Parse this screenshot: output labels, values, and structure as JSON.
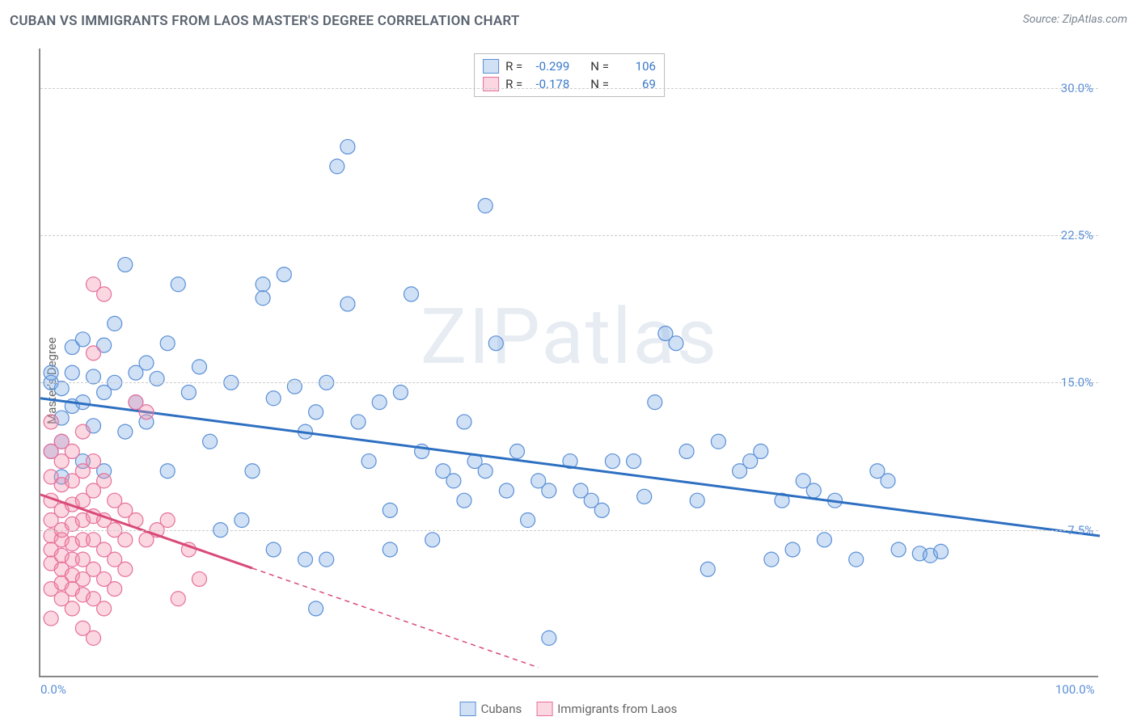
{
  "header": {
    "title": "CUBAN VS IMMIGRANTS FROM LAOS MASTER'S DEGREE CORRELATION CHART",
    "source_prefix": "Source: ",
    "source_name": "ZipAtlas.com"
  },
  "chart": {
    "type": "scatter",
    "y_axis_label": "Master's Degree",
    "watermark": "ZIPatlas",
    "background_color": "#ffffff",
    "grid_color": "#cccccc",
    "axis_color": "#888888",
    "tick_color": "#5a8fd6",
    "x_range": [
      0,
      100
    ],
    "y_range": [
      0,
      32
    ],
    "x_ticks": [
      {
        "value": 0,
        "label": "0.0%"
      },
      {
        "value": 100,
        "label": "100.0%"
      }
    ],
    "y_ticks": [
      {
        "value": 7.5,
        "label": "7.5%"
      },
      {
        "value": 15.0,
        "label": "15.0%"
      },
      {
        "value": 22.5,
        "label": "22.5%"
      },
      {
        "value": 30.0,
        "label": "30.0%"
      }
    ],
    "marker_radius": 9,
    "marker_stroke_width": 1.2,
    "trend_line_width": 3,
    "series": [
      {
        "name": "Cubans",
        "fill_color": "rgba(120,170,230,0.35)",
        "stroke_color": "#5a8fd6",
        "trend_color": "#2d6fc1",
        "R": "-0.299",
        "N": "106",
        "trend": {
          "x1": 0,
          "y1": 14.2,
          "x2": 100,
          "y2": 7.2,
          "solid_until_x": 100
        },
        "points": [
          [
            1,
            15.5
          ],
          [
            1,
            15.0
          ],
          [
            1,
            11.5
          ],
          [
            2,
            14.7
          ],
          [
            2,
            13.2
          ],
          [
            2,
            12.0
          ],
          [
            2,
            10.2
          ],
          [
            3,
            16.8
          ],
          [
            3,
            15.5
          ],
          [
            3,
            13.8
          ],
          [
            4,
            17.2
          ],
          [
            4,
            14.0
          ],
          [
            4,
            11.0
          ],
          [
            5,
            15.3
          ],
          [
            5,
            12.8
          ],
          [
            6,
            16.9
          ],
          [
            6,
            14.5
          ],
          [
            6,
            10.5
          ],
          [
            7,
            18.0
          ],
          [
            7,
            15.0
          ],
          [
            8,
            21.0
          ],
          [
            8,
            12.5
          ],
          [
            9,
            15.5
          ],
          [
            9,
            14.0
          ],
          [
            10,
            16.0
          ],
          [
            10,
            13.0
          ],
          [
            11,
            15.2
          ],
          [
            12,
            17.0
          ],
          [
            12,
            10.5
          ],
          [
            13,
            20.0
          ],
          [
            14,
            14.5
          ],
          [
            15,
            15.8
          ],
          [
            16,
            12.0
          ],
          [
            17,
            7.5
          ],
          [
            18,
            15.0
          ],
          [
            19,
            8.0
          ],
          [
            20,
            10.5
          ],
          [
            21,
            20.0
          ],
          [
            21,
            19.3
          ],
          [
            22,
            14.2
          ],
          [
            22,
            6.5
          ],
          [
            23,
            20.5
          ],
          [
            24,
            14.8
          ],
          [
            25,
            12.5
          ],
          [
            25,
            6.0
          ],
          [
            26,
            13.5
          ],
          [
            26,
            3.5
          ],
          [
            27,
            15.0
          ],
          [
            28,
            26.0
          ],
          [
            29,
            27.0
          ],
          [
            29,
            19.0
          ],
          [
            30,
            13.0
          ],
          [
            31,
            11.0
          ],
          [
            32,
            14.0
          ],
          [
            33,
            8.5
          ],
          [
            34,
            14.5
          ],
          [
            35,
            19.5
          ],
          [
            36,
            11.5
          ],
          [
            37,
            7.0
          ],
          [
            38,
            10.5
          ],
          [
            39,
            10.0
          ],
          [
            40,
            13.0
          ],
          [
            40,
            9.0
          ],
          [
            41,
            11.0
          ],
          [
            42,
            24.0
          ],
          [
            42,
            10.5
          ],
          [
            43,
            17.0
          ],
          [
            44,
            9.5
          ],
          [
            45,
            11.5
          ],
          [
            46,
            8.0
          ],
          [
            47,
            10.0
          ],
          [
            48,
            9.5
          ],
          [
            48,
            2.0
          ],
          [
            50,
            11.0
          ],
          [
            51,
            9.5
          ],
          [
            52,
            9.0
          ],
          [
            53,
            8.5
          ],
          [
            54,
            11.0
          ],
          [
            56,
            11.0
          ],
          [
            57,
            9.2
          ],
          [
            58,
            14.0
          ],
          [
            59,
            17.5
          ],
          [
            60,
            17.0
          ],
          [
            61,
            11.5
          ],
          [
            62,
            9.0
          ],
          [
            63,
            5.5
          ],
          [
            64,
            12.0
          ],
          [
            66,
            10.5
          ],
          [
            67,
            11.0
          ],
          [
            68,
            11.5
          ],
          [
            69,
            6.0
          ],
          [
            70,
            9.0
          ],
          [
            71,
            6.5
          ],
          [
            72,
            10.0
          ],
          [
            73,
            9.5
          ],
          [
            74,
            7.0
          ],
          [
            75,
            9.0
          ],
          [
            77,
            6.0
          ],
          [
            79,
            10.5
          ],
          [
            80,
            10.0
          ],
          [
            81,
            6.5
          ],
          [
            83,
            6.3
          ],
          [
            84,
            6.2
          ],
          [
            85,
            6.4
          ],
          [
            27,
            6.0
          ],
          [
            33,
            6.5
          ]
        ]
      },
      {
        "name": "Immigrants from Laos",
        "fill_color": "rgba(240,140,170,0.35)",
        "stroke_color": "#e76f9a",
        "trend_color": "#d94a78",
        "R": "-0.178",
        "N": "69",
        "trend": {
          "x1": 0,
          "y1": 9.3,
          "x2": 47,
          "y2": 0.5,
          "solid_until_x": 20
        },
        "points": [
          [
            1,
            13.0
          ],
          [
            1,
            11.5
          ],
          [
            1,
            10.2
          ],
          [
            1,
            9.0
          ],
          [
            1,
            8.0
          ],
          [
            1,
            7.2
          ],
          [
            1,
            6.5
          ],
          [
            1,
            5.8
          ],
          [
            1,
            4.5
          ],
          [
            1,
            3.0
          ],
          [
            2,
            12.0
          ],
          [
            2,
            11.0
          ],
          [
            2,
            9.8
          ],
          [
            2,
            8.5
          ],
          [
            2,
            7.5
          ],
          [
            2,
            7.0
          ],
          [
            2,
            6.2
          ],
          [
            2,
            5.5
          ],
          [
            2,
            4.8
          ],
          [
            2,
            4.0
          ],
          [
            3,
            11.5
          ],
          [
            3,
            10.0
          ],
          [
            3,
            8.8
          ],
          [
            3,
            7.8
          ],
          [
            3,
            6.8
          ],
          [
            3,
            6.0
          ],
          [
            3,
            5.2
          ],
          [
            3,
            4.5
          ],
          [
            3,
            3.5
          ],
          [
            4,
            12.5
          ],
          [
            4,
            10.5
          ],
          [
            4,
            9.0
          ],
          [
            4,
            8.0
          ],
          [
            4,
            7.0
          ],
          [
            4,
            6.0
          ],
          [
            4,
            5.0
          ],
          [
            4,
            4.2
          ],
          [
            4,
            2.5
          ],
          [
            5,
            20.0
          ],
          [
            5,
            16.5
          ],
          [
            5,
            11.0
          ],
          [
            5,
            9.5
          ],
          [
            5,
            8.2
          ],
          [
            5,
            7.0
          ],
          [
            5,
            5.5
          ],
          [
            5,
            4.0
          ],
          [
            5,
            2.0
          ],
          [
            6,
            19.5
          ],
          [
            6,
            10.0
          ],
          [
            6,
            8.0
          ],
          [
            6,
            6.5
          ],
          [
            6,
            5.0
          ],
          [
            6,
            3.5
          ],
          [
            7,
            9.0
          ],
          [
            7,
            7.5
          ],
          [
            7,
            6.0
          ],
          [
            7,
            4.5
          ],
          [
            8,
            8.5
          ],
          [
            8,
            7.0
          ],
          [
            8,
            5.5
          ],
          [
            9,
            14.0
          ],
          [
            9,
            8.0
          ],
          [
            10,
            13.5
          ],
          [
            10,
            7.0
          ],
          [
            11,
            7.5
          ],
          [
            12,
            8.0
          ],
          [
            13,
            4.0
          ],
          [
            14,
            6.5
          ],
          [
            15,
            5.0
          ]
        ]
      }
    ]
  },
  "legend_labels": {
    "R": "R =",
    "N": "N ="
  }
}
